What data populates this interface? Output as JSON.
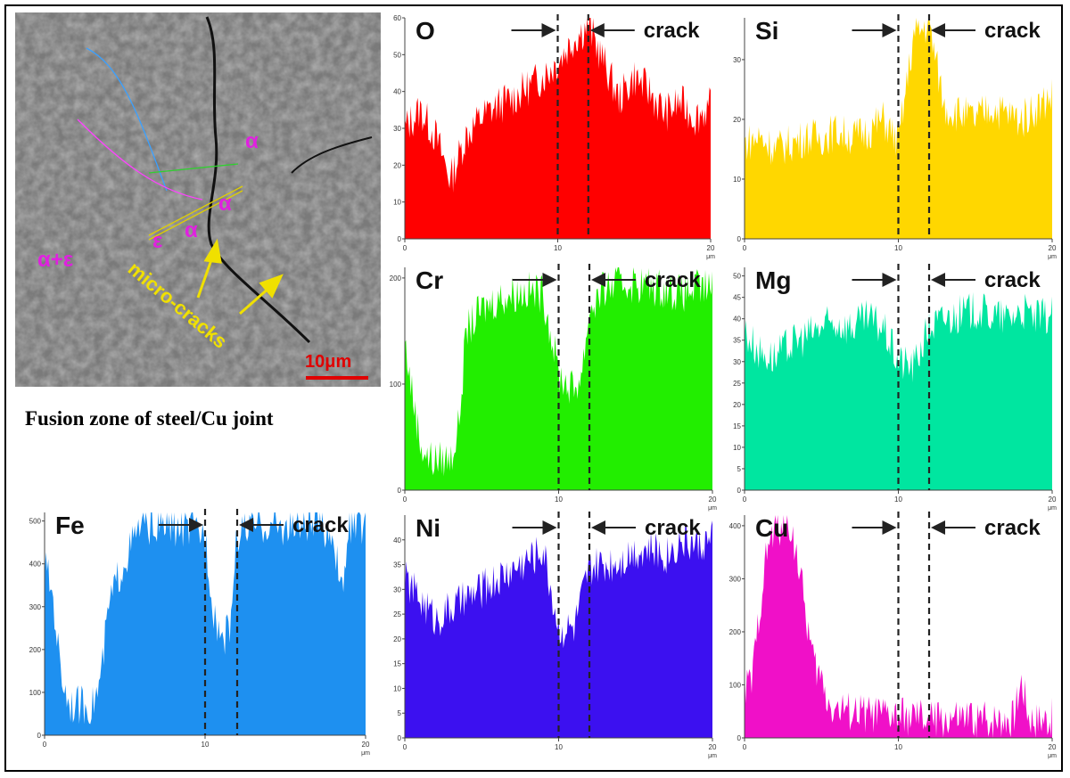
{
  "caption": "Fusion zone of steel/Cu joint",
  "sem": {
    "scale_bar": "10μm",
    "micro_cracks_label": "micro-cracks",
    "phase_labels": [
      "α",
      "α",
      "α",
      "ε",
      "α+ε"
    ],
    "scale_bar_color": "#e00000",
    "phase_label_color": "#e020e0",
    "annotation_color": "#f0e000"
  },
  "chart_data": [
    {
      "type": "area",
      "element": "O",
      "color": "#ff0000",
      "annotation": "crack",
      "x_unit": "μm",
      "xlim": [
        0,
        20
      ],
      "ylim": [
        0,
        60
      ],
      "xticks": [
        0,
        10,
        20
      ],
      "yticks": [
        0,
        10,
        20,
        30,
        40,
        50,
        60
      ],
      "crack_x": [
        10,
        12
      ],
      "x": [
        0,
        1,
        2,
        3,
        4,
        5,
        6,
        7,
        8,
        9,
        10,
        11,
        12,
        13,
        14,
        15,
        16,
        17,
        18,
        19,
        20
      ],
      "values": [
        30,
        35,
        28,
        16,
        28,
        33,
        36,
        38,
        41,
        44,
        48,
        54,
        58,
        48,
        38,
        44,
        40,
        34,
        37,
        33,
        36
      ]
    },
    {
      "type": "area",
      "element": "Si",
      "color": "#ffd700",
      "annotation": "crack",
      "x_unit": "μm",
      "xlim": [
        0,
        20
      ],
      "ylim": [
        0,
        37
      ],
      "xticks": [
        0,
        10,
        20
      ],
      "yticks": [
        0,
        10,
        20,
        30
      ],
      "crack_x": [
        10,
        12
      ],
      "x": [
        0,
        1,
        2,
        3,
        4,
        5,
        6,
        7,
        8,
        9,
        10,
        11,
        12,
        13,
        14,
        15,
        16,
        17,
        18,
        19,
        20
      ],
      "values": [
        16,
        17,
        15,
        16,
        17,
        17,
        18,
        17,
        18,
        20,
        16,
        34,
        36,
        22,
        21,
        20,
        22,
        21,
        20,
        22,
        24
      ]
    },
    {
      "type": "area",
      "element": "Cr",
      "color": "#22ee00",
      "annotation": "crack",
      "x_unit": "μm",
      "xlim": [
        0,
        20
      ],
      "ylim": [
        0,
        210
      ],
      "xticks": [
        0,
        10,
        20
      ],
      "yticks": [
        0,
        100,
        200
      ],
      "crack_x": [
        10,
        12
      ],
      "x": [
        0,
        0.5,
        1,
        1.5,
        2,
        3,
        3.5,
        4,
        5,
        6,
        7,
        8,
        9,
        10,
        10.5,
        11,
        11.5,
        12,
        13,
        14,
        15,
        16,
        17,
        18,
        19,
        20
      ],
      "values": [
        140,
        90,
        45,
        30,
        28,
        30,
        60,
        150,
        170,
        180,
        185,
        188,
        185,
        110,
        100,
        95,
        110,
        170,
        190,
        195,
        195,
        192,
        190,
        185,
        190,
        190
      ]
    },
    {
      "type": "area",
      "element": "Mg",
      "color": "#00e6a0",
      "annotation": "crack",
      "x_unit": "μm",
      "xlim": [
        0,
        20
      ],
      "ylim": [
        0,
        52
      ],
      "xticks": [
        0,
        10,
        20
      ],
      "yticks": [
        0,
        5,
        10,
        15,
        20,
        25,
        30,
        35,
        40,
        45,
        50
      ],
      "crack_x": [
        10,
        12
      ],
      "x": [
        0,
        1,
        2,
        3,
        4,
        5,
        6,
        7,
        8,
        9,
        10,
        11,
        12,
        13,
        14,
        15,
        16,
        17,
        18,
        19,
        20
      ],
      "values": [
        37,
        32,
        31,
        34,
        36,
        38,
        39,
        38,
        40,
        38,
        30,
        29,
        38,
        40,
        41,
        42,
        41,
        40,
        42,
        40,
        41
      ]
    },
    {
      "type": "area",
      "element": "Fe",
      "color": "#1e90f0",
      "annotation": "crack",
      "x_unit": "μm",
      "xlim": [
        0,
        20
      ],
      "ylim": [
        0,
        520
      ],
      "xticks": [
        0,
        10,
        20
      ],
      "yticks": [
        0,
        100,
        200,
        300,
        400,
        500
      ],
      "crack_x": [
        10,
        12
      ],
      "x": [
        0,
        0.5,
        1,
        1.5,
        2,
        3,
        3.5,
        4,
        4.5,
        5,
        6,
        7,
        8,
        9,
        10,
        10.5,
        11,
        11.5,
        12,
        13,
        14,
        15,
        16,
        17,
        18,
        18.5,
        19,
        20
      ],
      "values": [
        400,
        330,
        150,
        80,
        70,
        70,
        130,
        300,
        360,
        410,
        490,
        490,
        485,
        480,
        470,
        300,
        230,
        240,
        470,
        490,
        490,
        485,
        490,
        490,
        470,
        320,
        490,
        490
      ]
    },
    {
      "type": "area",
      "element": "Ni",
      "color": "#3c10f0",
      "annotation": "crack",
      "x_unit": "μm",
      "xlim": [
        0,
        20
      ],
      "ylim": [
        0,
        45
      ],
      "xticks": [
        0,
        10,
        20
      ],
      "yticks": [
        0,
        5,
        10,
        15,
        20,
        25,
        30,
        35,
        40
      ],
      "crack_x": [
        10,
        12
      ],
      "x": [
        0,
        1,
        2,
        3,
        4,
        5,
        6,
        7,
        8,
        9,
        10,
        11,
        12,
        13,
        14,
        15,
        16,
        17,
        18,
        19,
        20
      ],
      "values": [
        32,
        28,
        24,
        26,
        28,
        30,
        32,
        34,
        36,
        38,
        22,
        22,
        34,
        35,
        36,
        38,
        38,
        37,
        40,
        39,
        40
      ]
    },
    {
      "type": "area",
      "element": "Cu",
      "color": "#f010c8",
      "annotation": "crack",
      "x_unit": "μm",
      "xlim": [
        0,
        20
      ],
      "ylim": [
        0,
        420
      ],
      "xticks": [
        0,
        10,
        20
      ],
      "yticks": [
        0,
        100,
        200,
        300,
        400
      ],
      "crack_x": [
        10,
        12
      ],
      "x": [
        0,
        0.5,
        1,
        1.5,
        2,
        2.5,
        3,
        3.5,
        4,
        4.5,
        5,
        5.5,
        6,
        8,
        10,
        12,
        14,
        16,
        17.5,
        18,
        18.5,
        19,
        20
      ],
      "values": [
        95,
        110,
        250,
        360,
        395,
        400,
        400,
        330,
        230,
        140,
        110,
        65,
        55,
        45,
        40,
        35,
        35,
        35,
        40,
        110,
        40,
        35,
        38
      ]
    }
  ]
}
